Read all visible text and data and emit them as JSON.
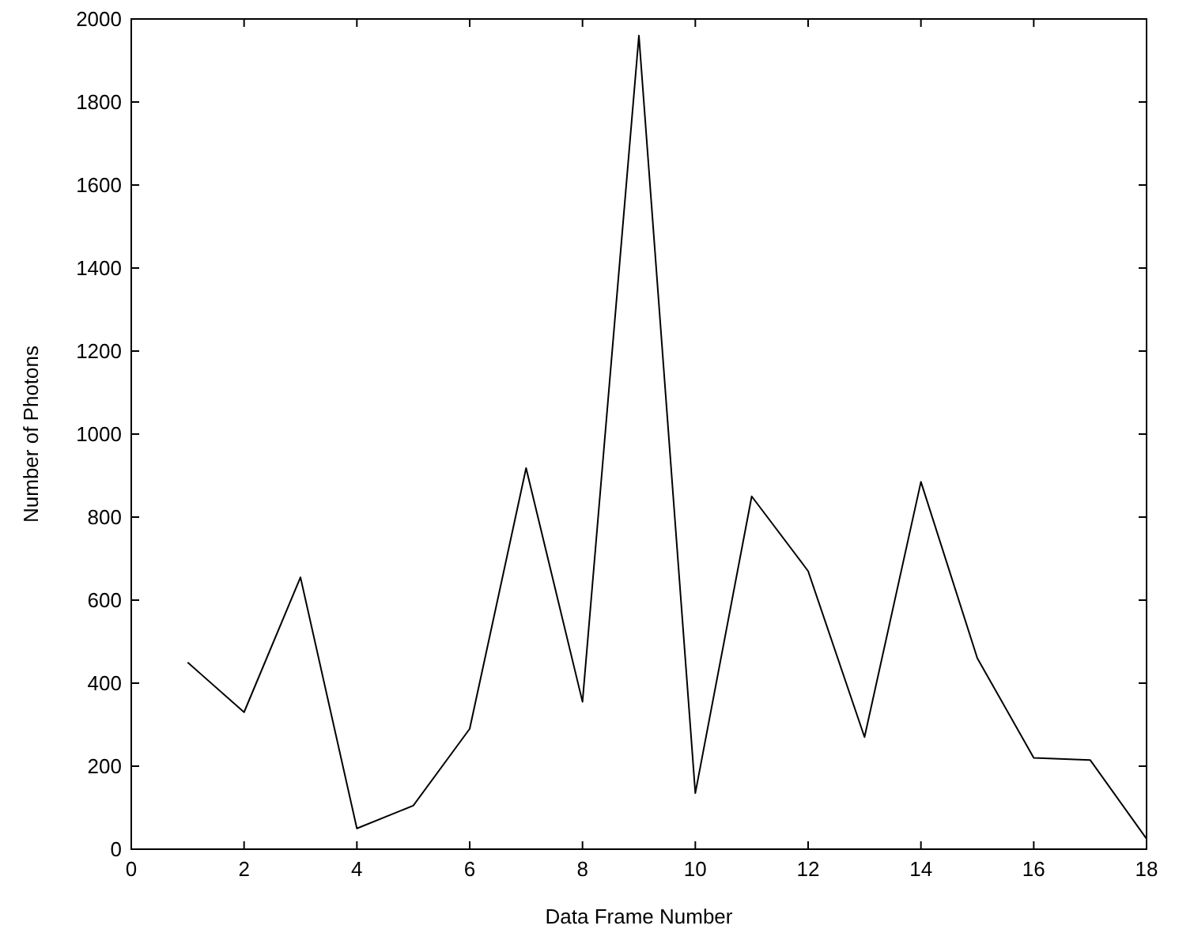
{
  "chart_data": {
    "type": "line",
    "xlabel": "Data Frame Number",
    "ylabel": "Number of Photons",
    "x": [
      1,
      2,
      3,
      4,
      5,
      6,
      7,
      8,
      9,
      10,
      11,
      12,
      13,
      14,
      15,
      16,
      17,
      18
    ],
    "series": [
      {
        "color": "#000000",
        "values": [
          450,
          330,
          655,
          50,
          105,
          290,
          918,
          355,
          1960,
          135,
          850,
          670,
          270,
          885,
          460,
          220,
          215,
          25
        ]
      }
    ],
    "xlim": [
      0,
      18
    ],
    "xticks": [
      0,
      2,
      4,
      6,
      8,
      10,
      12,
      14,
      16,
      18
    ],
    "ylim": [
      0,
      2000
    ],
    "yticks": [
      0,
      200,
      400,
      600,
      800,
      1000,
      1200,
      1400,
      1600,
      1800,
      2000
    ],
    "grid": false,
    "marker": "none",
    "line_style": "solid"
  }
}
